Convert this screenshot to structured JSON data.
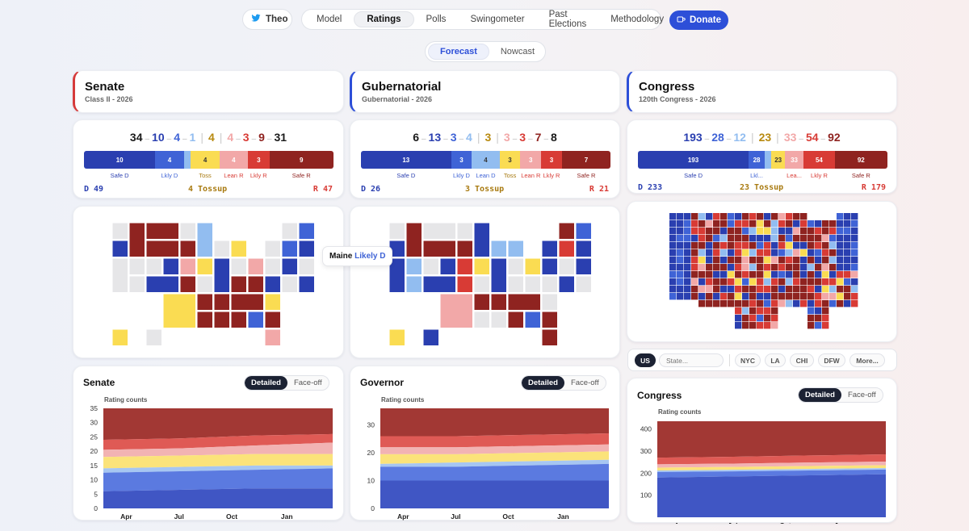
{
  "nav": {
    "user": "Theo",
    "items": [
      "Model",
      "Ratings",
      "Polls",
      "Swingometer",
      "Past Elections",
      "Methodology"
    ],
    "active": "Ratings",
    "donate": "Donate"
  },
  "modes": {
    "items": [
      "Forecast",
      "Nowcast"
    ],
    "active": "Forecast"
  },
  "colors": {
    "safe_d": "#2a3fb0",
    "likely_d": "#3f63d6",
    "lean_d": "#92bdf0",
    "toss": "#fadc52",
    "lean_r": "#f2a8a8",
    "likely_r": "#d83b35",
    "safe_r": "#8f2320",
    "none": "#e6e6e8"
  },
  "panels": [
    {
      "title": "Senate",
      "subtitle": "Class II - 2026",
      "accent": "#d63b3b",
      "counts": {
        "d": [
          "34",
          "10",
          "4",
          "1"
        ],
        "toss": "4",
        "r": [
          "4",
          "3",
          "9",
          "31"
        ]
      },
      "bar": [
        {
          "key": "safe_d",
          "v": 10,
          "label": "10"
        },
        {
          "key": "likely_d",
          "v": 4,
          "label": "4"
        },
        {
          "key": "lean_d",
          "v": 1,
          "label": ""
        },
        {
          "key": "toss",
          "v": 4,
          "label": "4"
        },
        {
          "key": "lean_r",
          "v": 4,
          "label": "4"
        },
        {
          "key": "likely_r",
          "v": 3,
          "label": "3"
        },
        {
          "key": "safe_r",
          "v": 9,
          "label": "9"
        }
      ],
      "bar_labels": [
        "Safe D",
        "Lkly D",
        "Toss",
        "Lean R",
        "Lkly R",
        "Safe R"
      ],
      "totals": {
        "d": "D 49",
        "toss": "4 Tossup",
        "r": "R 47"
      },
      "chart": {
        "title": "Senate",
        "rating_label": "Rating counts",
        "toggle": [
          "Detailed",
          "Face-off"
        ],
        "yticks": [
          "0",
          "5",
          "10",
          "15",
          "20",
          "25",
          "30",
          "35"
        ],
        "xticks": [
          "Apr",
          "Jul",
          "Oct",
          "Jan"
        ]
      }
    },
    {
      "title": "Gubernatorial",
      "subtitle": "Gubernatorial - 2026",
      "accent": "#2d4fd8",
      "counts": {
        "d": [
          "6",
          "13",
          "3",
          "4"
        ],
        "toss": "3",
        "r": [
          "3",
          "3",
          "7",
          "8"
        ]
      },
      "bar": [
        {
          "key": "safe_d",
          "v": 13,
          "label": "13"
        },
        {
          "key": "likely_d",
          "v": 3,
          "label": "3"
        },
        {
          "key": "lean_d",
          "v": 4,
          "label": "4"
        },
        {
          "key": "toss",
          "v": 3,
          "label": "3"
        },
        {
          "key": "lean_r",
          "v": 3,
          "label": "3"
        },
        {
          "key": "likely_r",
          "v": 3,
          "label": "3"
        },
        {
          "key": "safe_r",
          "v": 7,
          "label": "7"
        }
      ],
      "bar_labels": [
        "Safe D",
        "Lkly D",
        "Lean D",
        "Toss",
        "Lean R",
        "Lkly R",
        "Safe R"
      ],
      "totals": {
        "d": "D 26",
        "toss": "3 Tossup",
        "r": "R 21"
      },
      "chart": {
        "title": "Governor",
        "rating_label": "Rating counts",
        "toggle": [
          "Detailed",
          "Face-off"
        ],
        "yticks": [
          "0",
          "10",
          "20",
          "30"
        ],
        "xticks": [
          "Apr",
          "Jul",
          "Oct",
          "Jan"
        ]
      }
    },
    {
      "title": "Congress",
      "subtitle": "120th Congress - 2026",
      "accent": "#2d4fd8",
      "counts": {
        "d": [
          "193",
          "28",
          "12"
        ],
        "toss": "23",
        "r": [
          "33",
          "54",
          "92"
        ]
      },
      "bar": [
        {
          "key": "safe_d",
          "v": 193,
          "label": "193"
        },
        {
          "key": "likely_d",
          "v": 28,
          "label": "28"
        },
        {
          "key": "lean_d",
          "v": 12,
          "label": ""
        },
        {
          "key": "toss",
          "v": 23,
          "label": "23"
        },
        {
          "key": "lean_r",
          "v": 33,
          "label": "33"
        },
        {
          "key": "likely_r",
          "v": 54,
          "label": "54"
        },
        {
          "key": "safe_r",
          "v": 92,
          "label": "92"
        }
      ],
      "bar_labels": [
        "Safe D",
        "Lkl...",
        "Lea...",
        "Lkly R",
        "Safe R"
      ],
      "totals": {
        "d": "D 233",
        "toss": "23 Tossup",
        "r": "R 179"
      },
      "chart": {
        "title": "Congress",
        "rating_label": "Rating counts",
        "toggle": [
          "Detailed",
          "Face-off"
        ],
        "yticks": [
          "100",
          "200",
          "300",
          "400"
        ],
        "xticks": [
          "Apr",
          "Jul",
          "Oct",
          "Jan"
        ]
      }
    }
  ],
  "tooltip": {
    "state": "Maine",
    "rating": "Likely D"
  },
  "region": {
    "items": [
      "US",
      "NYC",
      "LA",
      "CHI",
      "DFW",
      "More..."
    ],
    "active": "US",
    "search_placeholder": "State..."
  },
  "chart_data": [
    {
      "type": "area",
      "title": "Senate",
      "ylabel": "Rating counts",
      "ylim": [
        0,
        35
      ],
      "x": [
        "Apr",
        "Jul",
        "Oct",
        "Jan"
      ],
      "series": [
        {
          "name": "Safe D",
          "values": [
            6,
            6.5,
            7,
            7
          ]
        },
        {
          "name": "Likely D",
          "values": [
            12.5,
            13,
            13.5,
            14
          ]
        },
        {
          "name": "Lean D",
          "values": [
            14,
            14.5,
            15,
            15
          ]
        },
        {
          "name": "Tossup",
          "values": [
            18,
            18.5,
            19,
            19
          ]
        },
        {
          "name": "Lean R",
          "values": [
            20.5,
            21,
            22,
            23
          ]
        },
        {
          "name": "Likely R",
          "values": [
            24,
            24.5,
            25.5,
            26
          ]
        },
        {
          "name": "Safe R",
          "values": [
            35,
            35,
            35,
            35
          ]
        }
      ]
    },
    {
      "type": "area",
      "title": "Governor",
      "ylabel": "Rating counts",
      "ylim": [
        0,
        36
      ],
      "x": [
        "Apr",
        "Jul",
        "Oct",
        "Jan"
      ],
      "series": [
        {
          "name": "Safe D",
          "values": [
            10,
            10,
            10,
            10
          ]
        },
        {
          "name": "Likely D",
          "values": [
            15,
            15,
            15.5,
            16
          ]
        },
        {
          "name": "Lean D",
          "values": [
            16,
            16.5,
            17,
            17.5
          ]
        },
        {
          "name": "Tossup",
          "values": [
            19.5,
            19.5,
            20,
            20.5
          ]
        },
        {
          "name": "Lean R",
          "values": [
            22,
            22,
            22.5,
            23
          ]
        },
        {
          "name": "Likely R",
          "values": [
            26,
            26,
            26.5,
            27
          ]
        },
        {
          "name": "Safe R",
          "values": [
            36,
            36,
            36,
            36
          ]
        }
      ]
    },
    {
      "type": "area",
      "title": "Congress",
      "ylabel": "Rating counts",
      "ylim": [
        0,
        435
      ],
      "x": [
        "Apr",
        "Jul",
        "Oct",
        "Jan"
      ],
      "series": [
        {
          "name": "Safe D",
          "values": [
            180,
            185,
            190,
            195
          ]
        },
        {
          "name": "Likely D",
          "values": [
            205,
            208,
            212,
            216
          ]
        },
        {
          "name": "Lean D",
          "values": [
            212,
            215,
            219,
            223
          ]
        },
        {
          "name": "Tossup",
          "values": [
            225,
            228,
            232,
            236
          ]
        },
        {
          "name": "Lean R",
          "values": [
            240,
            243,
            248,
            252
          ]
        },
        {
          "name": "Likely R",
          "values": [
            270,
            274,
            280,
            285
          ]
        },
        {
          "name": "Safe R",
          "values": [
            435,
            435,
            435,
            435
          ]
        }
      ]
    }
  ]
}
